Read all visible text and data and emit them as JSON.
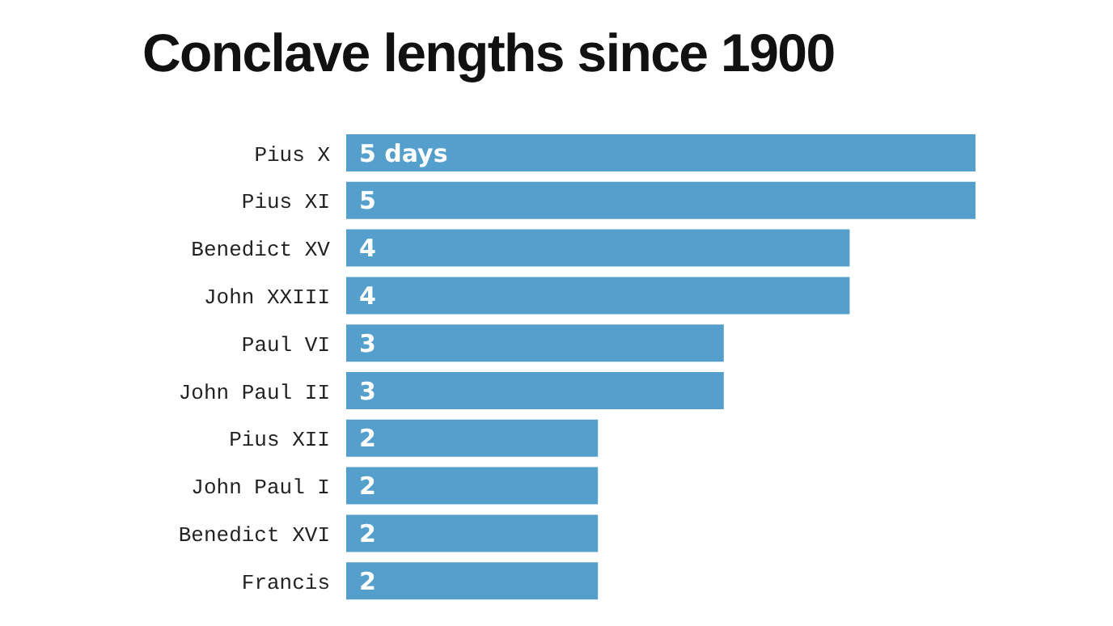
{
  "chart_data": {
    "type": "bar",
    "orientation": "horizontal",
    "title": "Conclave lengths since 1900",
    "categories": [
      "Pius X",
      "Pius XI",
      "Benedict XV",
      "John XXIII",
      "Paul VI",
      "John Paul II",
      "Pius XII",
      "John Paul I",
      "Benedict XVI",
      "Francis"
    ],
    "values": [
      5,
      5,
      4,
      4,
      3,
      3,
      2,
      2,
      2,
      2
    ],
    "value_labels": [
      "5 days",
      "5",
      "4",
      "4",
      "3",
      "3",
      "2",
      "2",
      "2",
      "2"
    ],
    "color": "#559fcd"
  }
}
